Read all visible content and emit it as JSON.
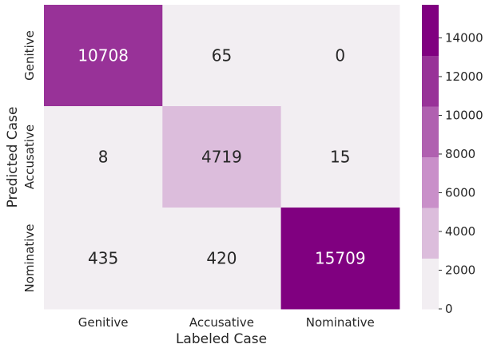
{
  "chart_data": {
    "type": "heatmap",
    "title": "",
    "xlabel": "Labeled Case",
    "ylabel": "Predicted Case",
    "x_categories": [
      "Genitive",
      "Accusative",
      "Nominative"
    ],
    "y_categories": [
      "Genitive",
      "Accusative",
      "Nominative"
    ],
    "values": [
      [
        10708,
        65,
        0
      ],
      [
        8,
        4719,
        15
      ],
      [
        435,
        420,
        15709
      ]
    ],
    "colorbar": {
      "min": 0,
      "max": 15709,
      "ticks": [
        0,
        2000,
        4000,
        6000,
        8000,
        10000,
        12000,
        14000
      ],
      "bins": 6,
      "colors": [
        "#f2eef2",
        "#dcbddc",
        "#c98fc9",
        "#b060b0",
        "#983298",
        "#800080"
      ]
    },
    "grid": false,
    "legend": "colorbar-right"
  }
}
